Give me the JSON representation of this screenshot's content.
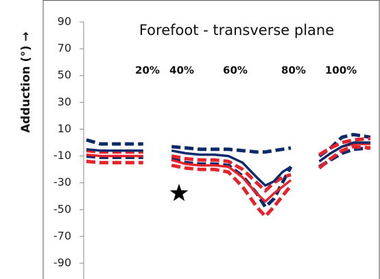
{
  "chart_data": {
    "type": "line",
    "title": "Forefoot - transverse plane",
    "y_label": "Adduction (°) →",
    "annotations": [
      "20%",
      "40%",
      "60%",
      "80%",
      "100%"
    ],
    "x": [
      0,
      5,
      10,
      15,
      20,
      25,
      30,
      35,
      40,
      45,
      50,
      55,
      60,
      63,
      66,
      69,
      72,
      77,
      82,
      86,
      90,
      94,
      100
    ],
    "xlim": [
      0,
      100
    ],
    "ylim": [
      -90,
      90
    ],
    "yticks": [
      90,
      70,
      50,
      30,
      10,
      -10,
      -30,
      -50,
      -70,
      -90
    ],
    "series": [
      {
        "color": "#0b2a6b",
        "style": "dashed",
        "values": [
          2,
          -1,
          -1,
          -1,
          -1,
          null,
          -3,
          -4,
          -5,
          -5,
          -5,
          -6,
          -7,
          -7,
          -6,
          -5,
          -4,
          null,
          -10,
          -4,
          4,
          6,
          4
        ]
      },
      {
        "color": "#0b2a6b",
        "style": "dashed",
        "values": [
          -10,
          -11,
          -11,
          -11,
          -11,
          null,
          -12,
          -15,
          -16,
          -16,
          -17,
          -25,
          -38,
          -48,
          -42,
          -30,
          -18,
          null,
          -18,
          -13,
          -8,
          -5,
          -4
        ]
      },
      {
        "color": "#e8222a",
        "style": "dashed",
        "values": [
          -6,
          -7,
          -7,
          -7,
          -7,
          null,
          -10,
          -12,
          -13,
          -13,
          -14,
          -20,
          -30,
          -36,
          -30,
          -26,
          -24,
          null,
          -9,
          -4,
          0,
          2,
          3
        ]
      },
      {
        "color": "#e8222a",
        "style": "dashed",
        "values": [
          -14,
          -15,
          -15,
          -15,
          -15,
          null,
          -17,
          -19,
          -20,
          -20,
          -22,
          -33,
          -48,
          -55,
          -48,
          -40,
          -32,
          null,
          -19,
          -12,
          -6,
          -3,
          -4
        ]
      },
      {
        "color": "#e8222a",
        "style": "solid",
        "values": [
          -9,
          -10,
          -10,
          -10,
          -10,
          null,
          -13,
          -16,
          -17,
          -17,
          -18,
          -26,
          -38,
          -44,
          -38,
          -33,
          -28,
          null,
          -14,
          -8,
          -3,
          -1,
          -1
        ]
      },
      {
        "color": "#0b2a6b",
        "style": "solid",
        "values": [
          -5,
          -6,
          -6,
          -6,
          -6,
          null,
          -6,
          -8,
          -9,
          -9,
          -10,
          -15,
          -26,
          -32,
          -29,
          -22,
          -18,
          null,
          -14,
          -8,
          -3,
          0,
          0
        ]
      }
    ]
  }
}
